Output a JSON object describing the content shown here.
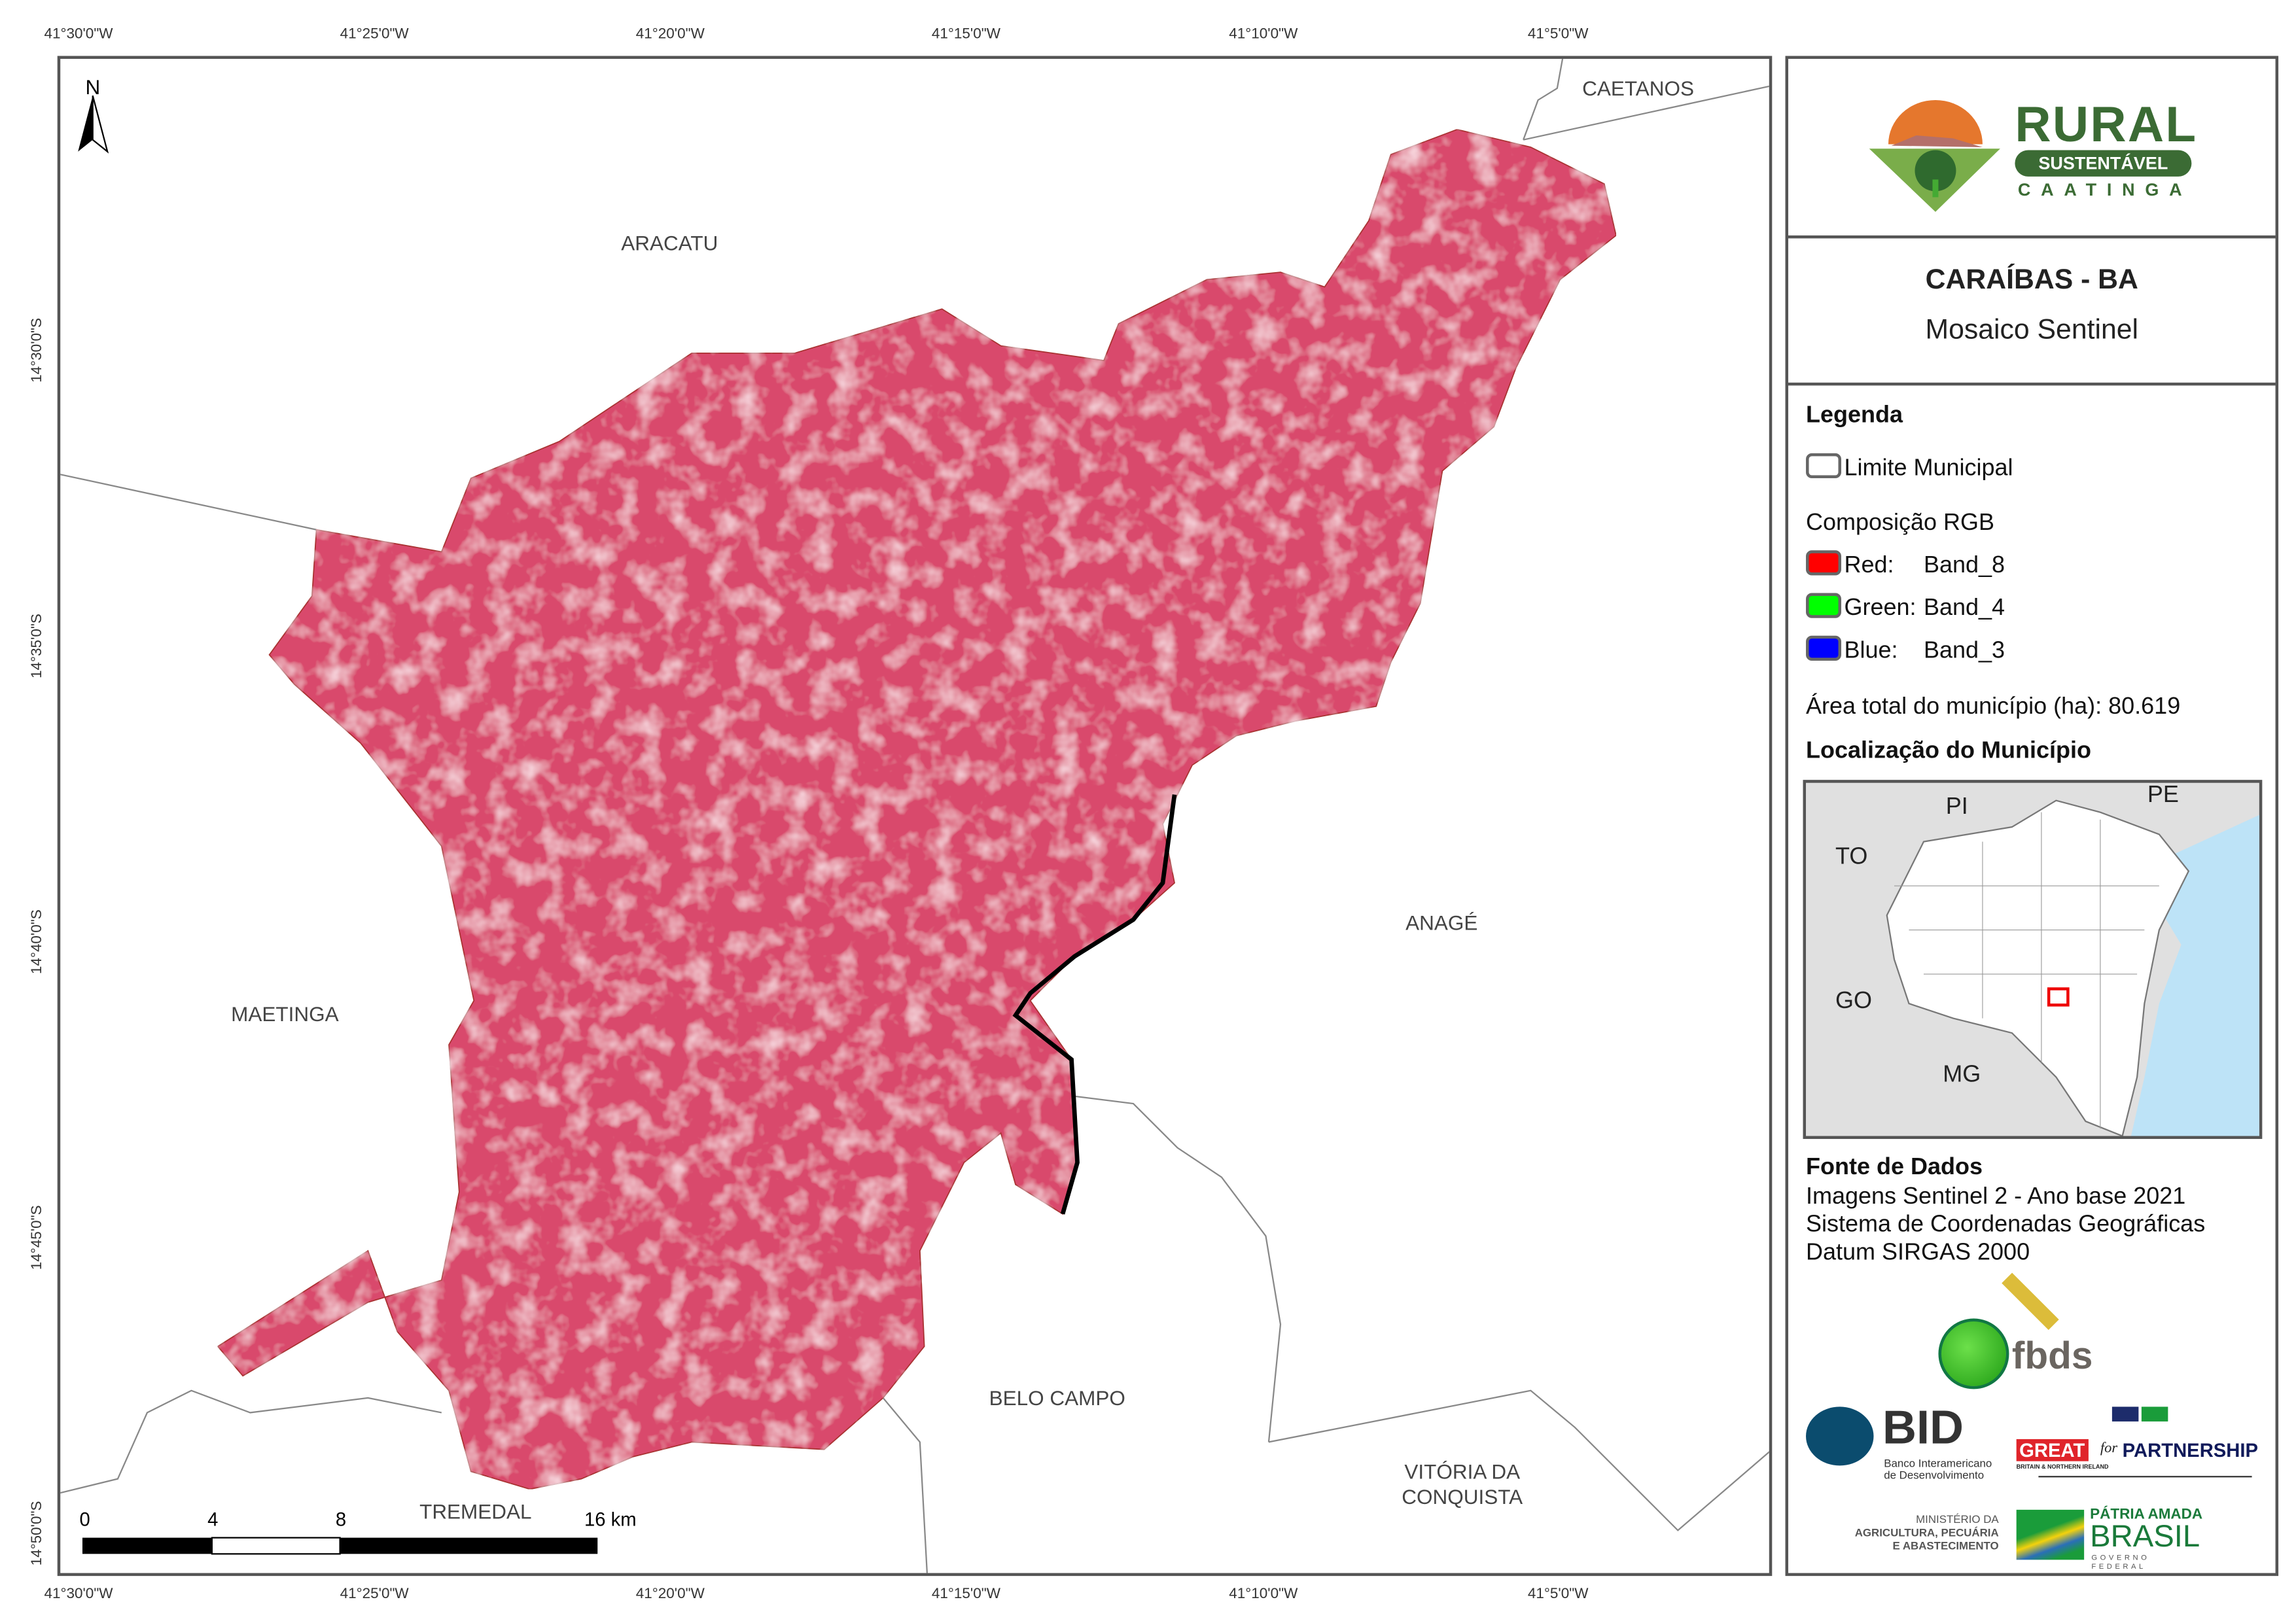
{
  "graticule": {
    "top": [
      "41°30'0\"W",
      "41°25'0\"W",
      "41°20'0\"W",
      "41°15'0\"W",
      "41°10'0\"W",
      "41°5'0\"W"
    ],
    "bottom": [
      "41°30'0\"W",
      "41°25'0\"W",
      "41°20'0\"W",
      "41°15'0\"W",
      "41°10'0\"W",
      "41°5'0\"W"
    ],
    "left": [
      "14°30'0\"S",
      "14°35'0\"S",
      "14°40'0\"S",
      "14°45'0\"S",
      "14°50'0\"S"
    ]
  },
  "map": {
    "north_label": "N",
    "neighbors": [
      "CAETANOS",
      "ARACATU",
      "ANAGÉ",
      "MAETINGA",
      "BELO CAMPO",
      "VITÓRIA DA CONQUISTA",
      "TREMEDAL"
    ],
    "scalebar": {
      "ticks": [
        "0",
        "4",
        "8",
        "16 km"
      ]
    },
    "colors": {
      "vegetation": "#e0456a",
      "boundary": "#888888"
    }
  },
  "panel": {
    "logo": {
      "line1": "RURAL",
      "line2": "SUSTENTÁVEL",
      "line3": "CAATINGA"
    },
    "title": "CARAÍBAS - BA",
    "subtitle": "Mosaico Sentinel",
    "legend": {
      "heading": "Legenda",
      "boundary": "Limite Municipal",
      "rgb_heading": "Composição RGB",
      "bands": [
        {
          "channel": "Red:",
          "band": "Band_8",
          "color": "#ff0000"
        },
        {
          "channel": "Green:",
          "band": "Band_4",
          "color": "#00ff00"
        },
        {
          "channel": "Blue:",
          "band": "Band_3",
          "color": "#0000ff"
        }
      ],
      "area": "Área total do município (ha): 80.619"
    },
    "location": {
      "heading": "Localização do Município",
      "labels": [
        "PI",
        "PE",
        "TO",
        "GO",
        "MG"
      ]
    },
    "sources": {
      "heading": "Fonte de Dados",
      "lines": [
        "Imagens Sentinel 2 - Ano base 2021",
        "Sistema de Coordenadas Geográficas",
        "Datum SIRGAS 2000"
      ]
    },
    "logos": {
      "fbds": "fbds",
      "bid": "BID",
      "bid_sub1": "Banco Interamericano",
      "bid_sub2": "de Desenvolvimento",
      "great": "GREAT",
      "great_for": "for",
      "great_partner": "PARTNERSHIP",
      "great_sub": "BRITAIN & NORTHERN IRELAND",
      "mapa1": "MINISTÉRIO DA",
      "mapa2": "AGRICULTURA, PECUÁRIA",
      "mapa3": "E ABASTECIMENTO",
      "brasil1": "PÁTRIA AMADA",
      "brasil2": "BRASIL",
      "brasil3": "GOVERNO FEDERAL"
    }
  }
}
